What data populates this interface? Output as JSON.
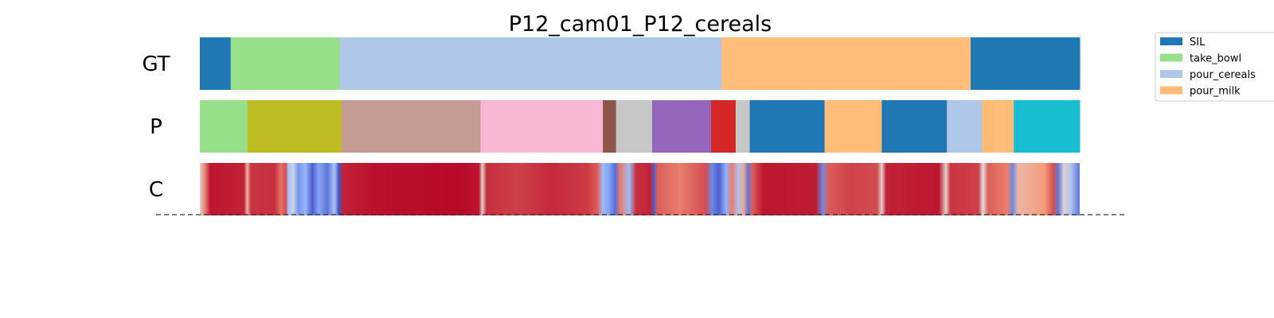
{
  "chart_data": {
    "type": "segmentation-timeline",
    "title": "P12_cam01_P12_cereals",
    "x_range": [
      0,
      1
    ],
    "rows": [
      {
        "label": "GT",
        "segments": [
          {
            "start": 0.0,
            "end": 0.035,
            "color": "#1f77b4"
          },
          {
            "start": 0.035,
            "end": 0.159,
            "color": "#98df8a"
          },
          {
            "start": 0.159,
            "end": 0.593,
            "color": "#aec7e8"
          },
          {
            "start": 0.593,
            "end": 0.876,
            "color": "#ffbb78"
          },
          {
            "start": 0.876,
            "end": 1.0,
            "color": "#1f77b4"
          }
        ]
      },
      {
        "label": "P",
        "segments": [
          {
            "start": 0.0,
            "end": 0.054,
            "color": "#98df8a"
          },
          {
            "start": 0.054,
            "end": 0.161,
            "color": "#bcbd22"
          },
          {
            "start": 0.161,
            "end": 0.319,
            "color": "#c49c94"
          },
          {
            "start": 0.319,
            "end": 0.458,
            "color": "#f7b6d2"
          },
          {
            "start": 0.458,
            "end": 0.473,
            "color": "#8c564b"
          },
          {
            "start": 0.473,
            "end": 0.514,
            "color": "#c7c7c7"
          },
          {
            "start": 0.514,
            "end": 0.581,
            "color": "#9467bd"
          },
          {
            "start": 0.581,
            "end": 0.609,
            "color": "#d62728"
          },
          {
            "start": 0.609,
            "end": 0.625,
            "color": "#c7c7c7"
          },
          {
            "start": 0.625,
            "end": 0.71,
            "color": "#1f77b4"
          },
          {
            "start": 0.71,
            "end": 0.775,
            "color": "#ffbb78"
          },
          {
            "start": 0.775,
            "end": 0.849,
            "color": "#1f77b4"
          },
          {
            "start": 0.849,
            "end": 0.889,
            "color": "#aec7e8"
          },
          {
            "start": 0.889,
            "end": 0.925,
            "color": "#ffbb78"
          },
          {
            "start": 0.925,
            "end": 1.0,
            "color": "#17becf"
          }
        ]
      },
      {
        "label": "C",
        "colormap": "coolwarm",
        "confidence": [
          {
            "t": 0.0,
            "v": 0.55
          },
          {
            "t": 0.006,
            "v": 0.8
          },
          {
            "t": 0.012,
            "v": 0.97
          },
          {
            "t": 0.05,
            "v": 0.95
          },
          {
            "t": 0.054,
            "v": 0.65
          },
          {
            "t": 0.058,
            "v": 0.92
          },
          {
            "t": 0.085,
            "v": 0.93
          },
          {
            "t": 0.092,
            "v": 0.82
          },
          {
            "t": 0.098,
            "v": 0.88
          },
          {
            "t": 0.1,
            "v": 0.3
          },
          {
            "t": 0.106,
            "v": 0.45
          },
          {
            "t": 0.112,
            "v": 0.18
          },
          {
            "t": 0.12,
            "v": 0.28
          },
          {
            "t": 0.128,
            "v": 0.05
          },
          {
            "t": 0.135,
            "v": 0.22
          },
          {
            "t": 0.145,
            "v": 0.1
          },
          {
            "t": 0.153,
            "v": 0.35
          },
          {
            "t": 0.158,
            "v": 0.02
          },
          {
            "t": 0.163,
            "v": 0.95
          },
          {
            "t": 0.2,
            "v": 0.98
          },
          {
            "t": 0.3,
            "v": 0.99
          },
          {
            "t": 0.317,
            "v": 0.97
          },
          {
            "t": 0.321,
            "v": 0.55
          },
          {
            "t": 0.326,
            "v": 0.93
          },
          {
            "t": 0.36,
            "v": 0.9
          },
          {
            "t": 0.4,
            "v": 0.94
          },
          {
            "t": 0.44,
            "v": 0.91
          },
          {
            "t": 0.452,
            "v": 0.85
          },
          {
            "t": 0.458,
            "v": 0.3
          },
          {
            "t": 0.466,
            "v": 0.2
          },
          {
            "t": 0.472,
            "v": 0.08
          },
          {
            "t": 0.478,
            "v": 0.8
          },
          {
            "t": 0.488,
            "v": 0.3
          },
          {
            "t": 0.496,
            "v": 0.93
          },
          {
            "t": 0.512,
            "v": 0.95
          },
          {
            "t": 0.516,
            "v": 0.05
          },
          {
            "t": 0.52,
            "v": 0.85
          },
          {
            "t": 0.545,
            "v": 0.8
          },
          {
            "t": 0.575,
            "v": 0.88
          },
          {
            "t": 0.582,
            "v": 0.15
          },
          {
            "t": 0.59,
            "v": 0.05
          },
          {
            "t": 0.598,
            "v": 0.25
          },
          {
            "t": 0.605,
            "v": 0.8
          },
          {
            "t": 0.612,
            "v": 0.35
          },
          {
            "t": 0.618,
            "v": 0.7
          },
          {
            "t": 0.623,
            "v": 0.1
          },
          {
            "t": 0.628,
            "v": 0.85
          },
          {
            "t": 0.64,
            "v": 0.97
          },
          {
            "t": 0.7,
            "v": 0.96
          },
          {
            "t": 0.708,
            "v": 0.15
          },
          {
            "t": 0.714,
            "v": 0.85
          },
          {
            "t": 0.74,
            "v": 0.9
          },
          {
            "t": 0.77,
            "v": 0.88
          },
          {
            "t": 0.775,
            "v": 0.55
          },
          {
            "t": 0.78,
            "v": 0.95
          },
          {
            "t": 0.84,
            "v": 0.97
          },
          {
            "t": 0.848,
            "v": 0.55
          },
          {
            "t": 0.853,
            "v": 0.92
          },
          {
            "t": 0.885,
            "v": 0.9
          },
          {
            "t": 0.89,
            "v": 0.5
          },
          {
            "t": 0.896,
            "v": 0.85
          },
          {
            "t": 0.918,
            "v": 0.8
          },
          {
            "t": 0.924,
            "v": 0.15
          },
          {
            "t": 0.93,
            "v": 0.65
          },
          {
            "t": 0.96,
            "v": 0.75
          },
          {
            "t": 0.97,
            "v": 0.88
          },
          {
            "t": 0.976,
            "v": 0.12
          },
          {
            "t": 0.982,
            "v": 0.55
          },
          {
            "t": 0.99,
            "v": 0.35
          },
          {
            "t": 1.0,
            "v": 0.1
          }
        ]
      }
    ],
    "legend": {
      "placement": "upper-right",
      "entries": [
        {
          "label": "SIL",
          "color": "#1f77b4"
        },
        {
          "label": "take_bowl",
          "color": "#98df8a"
        },
        {
          "label": "pour_cereals",
          "color": "#aec7e8"
        },
        {
          "label": "pour_milk",
          "color": "#ffbb78"
        }
      ]
    },
    "baseline": "dashed"
  }
}
